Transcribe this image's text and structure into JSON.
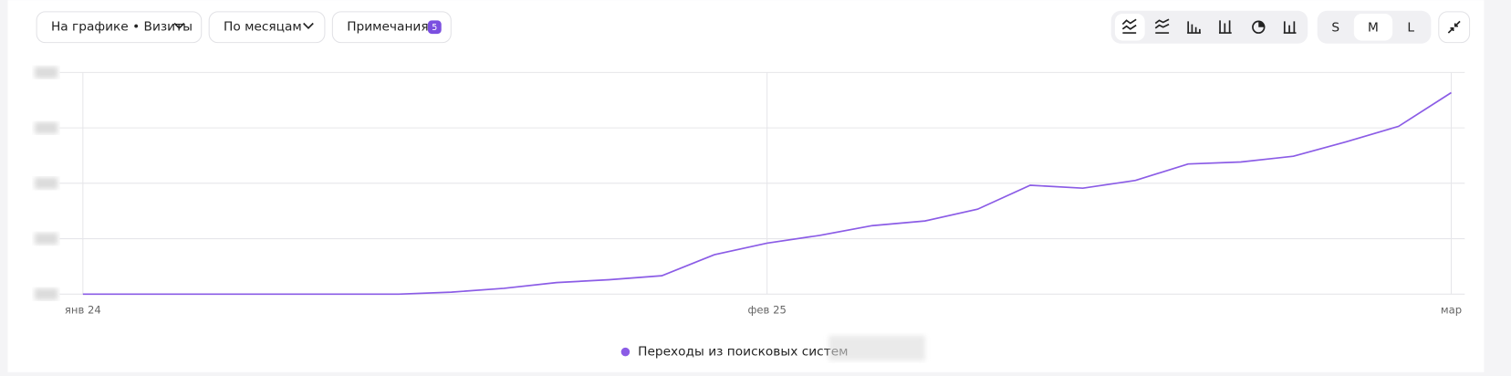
{
  "toolbar": {
    "chart_select": "На графике • Визиты",
    "grouping": "По месяцам",
    "notes": "Примечания",
    "notes_count": 5,
    "sizes": [
      "S",
      "M",
      "L"
    ]
  },
  "chart_data": {
    "type": "line",
    "categories": [
      "янв 24",
      null,
      null,
      null,
      null,
      null,
      null,
      null,
      null,
      null,
      null,
      null,
      null,
      "фев 25",
      null,
      null,
      null,
      null,
      null,
      null,
      null,
      null,
      null,
      null,
      null,
      null,
      "мар"
    ],
    "series": [
      {
        "name": "Переходы из поисковых систем",
        "color": "#8b5ce6",
        "values": [
          0,
          0,
          0,
          0,
          0,
          0,
          0,
          0.9,
          2.6,
          5.2,
          6.5,
          8.3,
          17.8,
          23.0,
          26.5,
          30.9,
          33.0,
          38.3,
          49.1,
          47.8,
          51.3,
          58.7,
          59.6,
          62.2,
          68.7,
          75.7,
          90.9
        ]
      }
    ],
    "ylim": [
      0,
      100
    ],
    "yticks": [
      0,
      25,
      50,
      75,
      100
    ],
    "grid": true
  }
}
